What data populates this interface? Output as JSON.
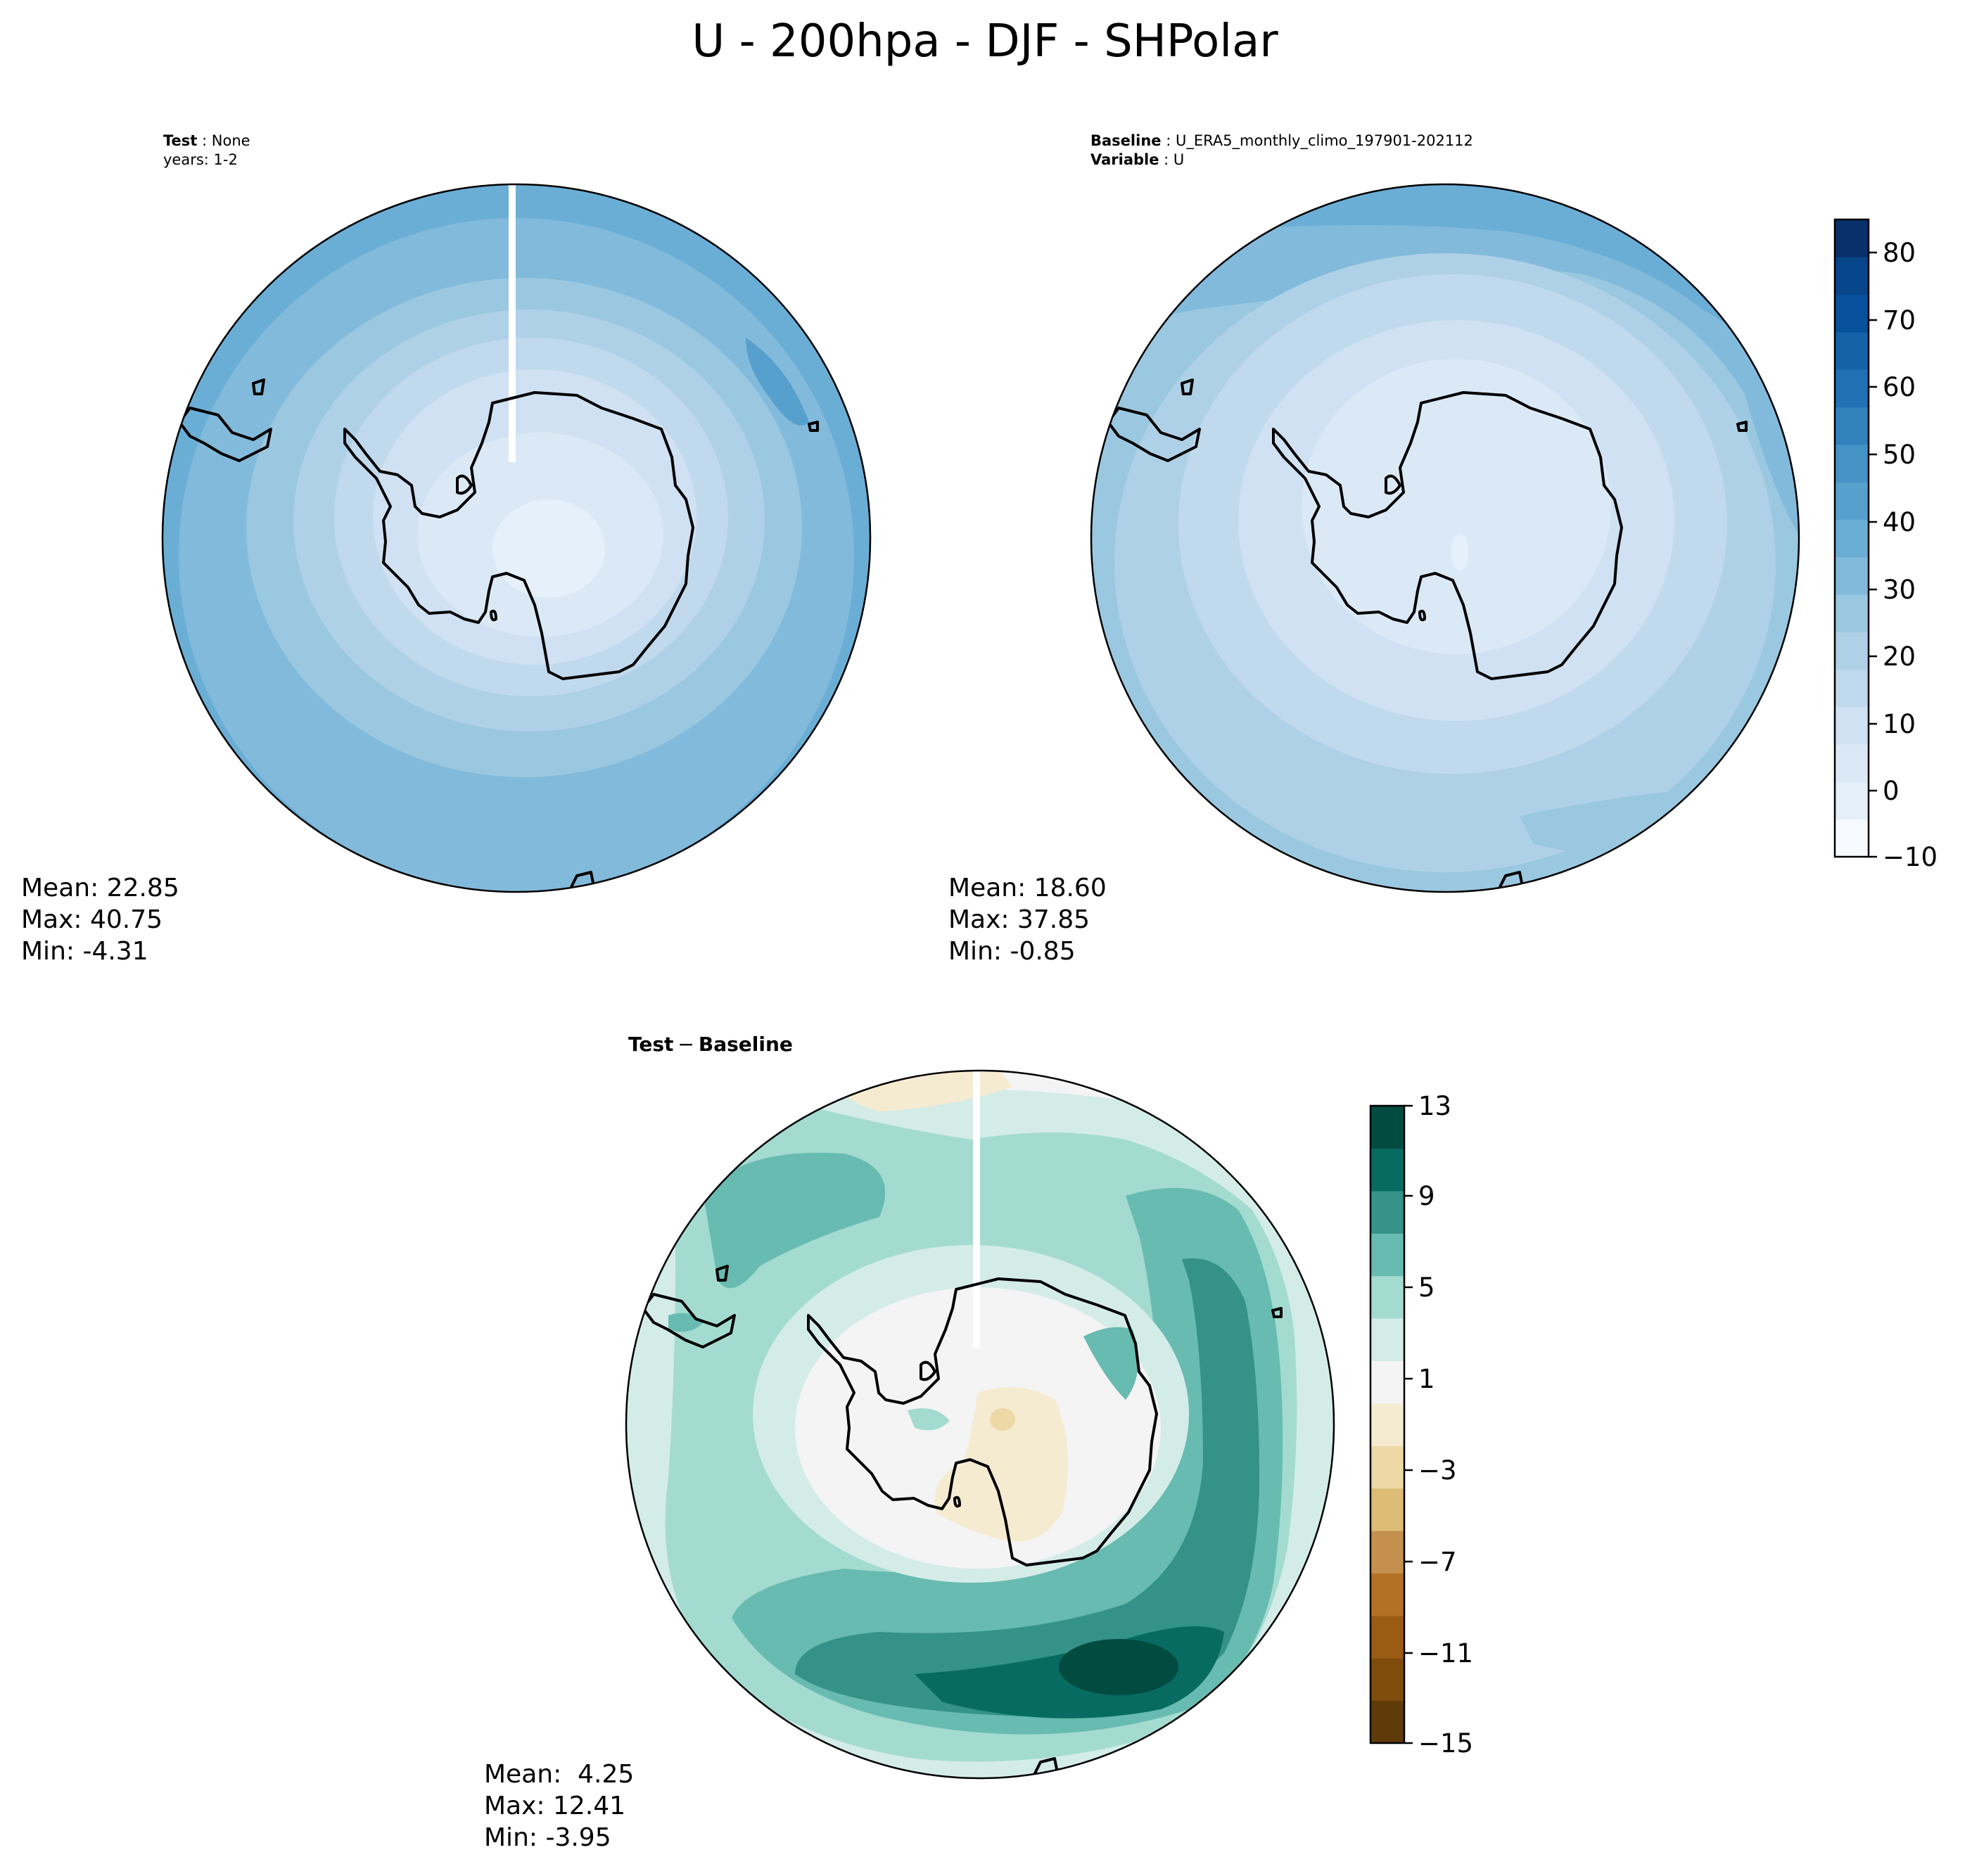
{
  "title": "U - 200hpa - DJF - SHPolar",
  "panels": {
    "test": {
      "label_bold": "Test",
      "label_value": "None",
      "label_line2": "years: 1-2",
      "stats": [
        "Mean: 22.85",
        "Max: 40.75",
        "Min: -4.31"
      ]
    },
    "baseline": {
      "label_bold": "Baseline",
      "label_value": "U_ERA5_monthly_climo_197901-202112",
      "label2_bold": "Variable",
      "label2_value": "U",
      "stats": [
        "Mean: 18.60",
        "Max: 37.85",
        "Min: -0.85"
      ]
    },
    "diff": {
      "label_a": "Test",
      "label_op": "−",
      "label_b": "Baseline",
      "stats": [
        "Mean:  4.25",
        "Max: 12.41",
        "Min: -3.95"
      ]
    }
  },
  "colorbars": {
    "main": {
      "ticks": [
        "80",
        "70",
        "60",
        "50",
        "40",
        "30",
        "20",
        "10",
        "0",
        "−10"
      ],
      "colors": [
        "#f7fbff",
        "#e6f0fa",
        "#dbe9f6",
        "#cfe1f2",
        "#c1d9ed",
        "#afd1e7",
        "#9ac8e0",
        "#82badb",
        "#6aaed6",
        "#57a0ce",
        "#4592c6",
        "#3282be",
        "#2171b5",
        "#1562a9",
        "#08519c",
        "#08468b",
        "#08306b"
      ]
    },
    "diff": {
      "ticks": [
        "13",
        "9",
        "5",
        "1",
        "−3",
        "−7",
        "−11",
        "−15"
      ],
      "colors": [
        "#5e3b08",
        "#7f4c0b",
        "#9a5c12",
        "#b27124",
        "#c58f4d",
        "#dcbc76",
        "#ecd9a6",
        "#f5ebd1",
        "#f4f4f4",
        "#d4ece8",
        "#a4dbd1",
        "#68bbb0",
        "#349289",
        "#076b61",
        "#024b40"
      ]
    }
  }
}
